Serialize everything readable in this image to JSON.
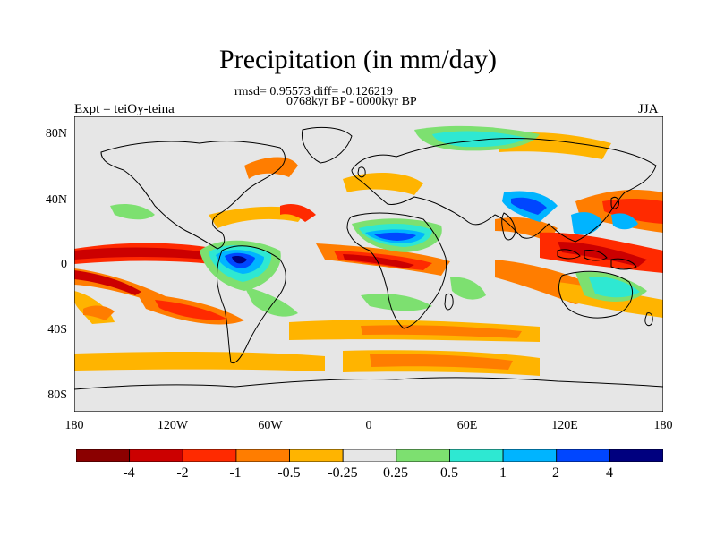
{
  "title": "Precipitation (in mm/day)",
  "stats": "rmsd= 0.95573 diff= -0.126219",
  "period": "0768kyr BP - 0000kyr BP",
  "experiment": "Expt = teiOy-teina",
  "season": "JJA",
  "lat_ticks": [
    "80N",
    "40N",
    "0",
    "40S",
    "80S"
  ],
  "lon_ticks": [
    "180",
    "120W",
    "60W",
    "0",
    "60E",
    "120E",
    "180"
  ],
  "colorbar": {
    "colors": [
      "#8b0000",
      "#cc0000",
      "#ff2a00",
      "#ff7d00",
      "#ffb400",
      "#e6e6e6",
      "#7de070",
      "#2ee8d2",
      "#00b4ff",
      "#0046ff",
      "#00007f"
    ],
    "labels": [
      "-4",
      "-2",
      "-1",
      "-0.5",
      "-0.25",
      "0.25",
      "0.5",
      "1",
      "2",
      "4"
    ]
  },
  "map": {
    "background": "#e6e6e6",
    "projection": "cylindrical equidistant",
    "lon_range": [
      -180,
      180
    ],
    "lat_range": [
      -90,
      90
    ]
  }
}
